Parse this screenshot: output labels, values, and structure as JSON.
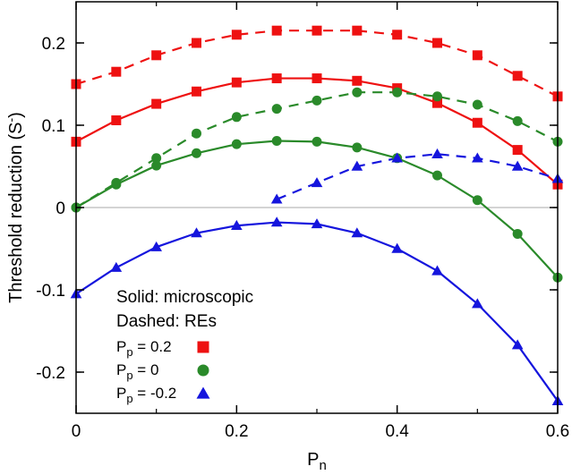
{
  "chart_data": {
    "type": "line",
    "title": "",
    "xlabel": "P",
    "xlabel_sub": "n",
    "ylabel": "Threshold reduction (S",
    "ylabel_sup": "-",
    "ylabel_close": ")",
    "xlim": [
      0,
      0.6
    ],
    "ylim": [
      -0.25,
      0.25
    ],
    "x_ticks": [
      0,
      0.2,
      0.4,
      0.6
    ],
    "x_tick_labels": [
      "0",
      "0.2",
      "0.4",
      "0.6"
    ],
    "y_ticks": [
      -0.2,
      -0.1,
      0,
      0.1,
      0.2
    ],
    "y_tick_labels": [
      "-0.2",
      "-0.1",
      "0",
      "0.1",
      "0.2"
    ],
    "zero_line": true,
    "grid": false,
    "legend_placement": "bottom-left",
    "legend_notes": [
      "Solid: microscopic",
      "Dashed: REs"
    ],
    "x": [
      0,
      0.05,
      0.1,
      0.15,
      0.2,
      0.25,
      0.3,
      0.35,
      0.4,
      0.45,
      0.5,
      0.55,
      0.6
    ],
    "series": [
      {
        "legend_main": "P",
        "legend_sub": "p",
        "legend_rest": " = 0.2",
        "color": "#ee1111",
        "marker": "square",
        "microscopic": [
          0.08,
          0.106,
          0.126,
          0.141,
          0.152,
          0.157,
          0.157,
          0.154,
          0.145,
          0.127,
          0.103,
          0.07,
          0.028
        ],
        "res": [
          0.15,
          0.165,
          0.185,
          0.2,
          0.21,
          0.215,
          0.215,
          0.215,
          0.21,
          0.2,
          0.185,
          0.16,
          0.135
        ]
      },
      {
        "legend_main": "P",
        "legend_sub": "p",
        "legend_rest": " = 0",
        "color": "#2a8a2a",
        "marker": "circle",
        "microscopic": [
          0.0,
          0.028,
          0.051,
          0.066,
          0.077,
          0.081,
          0.08,
          0.073,
          0.06,
          0.039,
          0.009,
          -0.032,
          -0.085
        ],
        "res": [
          0.0,
          0.03,
          0.06,
          0.09,
          0.11,
          0.12,
          0.13,
          0.14,
          0.14,
          0.135,
          0.125,
          0.105,
          0.08
        ]
      },
      {
        "legend_main": "P",
        "legend_sub": "p",
        "legend_rest": " = -0.2",
        "color": "#1515dd",
        "marker": "triangle",
        "microscopic": [
          -0.105,
          -0.073,
          -0.048,
          -0.031,
          -0.022,
          -0.018,
          -0.02,
          -0.031,
          -0.05,
          -0.077,
          -0.117,
          -0.167,
          -0.235
        ],
        "res_x": [
          0.25,
          0.3,
          0.35,
          0.4,
          0.45,
          0.5,
          0.55,
          0.6
        ],
        "res": [
          0.01,
          0.03,
          0.05,
          0.06,
          0.065,
          0.06,
          0.05,
          0.035
        ]
      }
    ]
  }
}
